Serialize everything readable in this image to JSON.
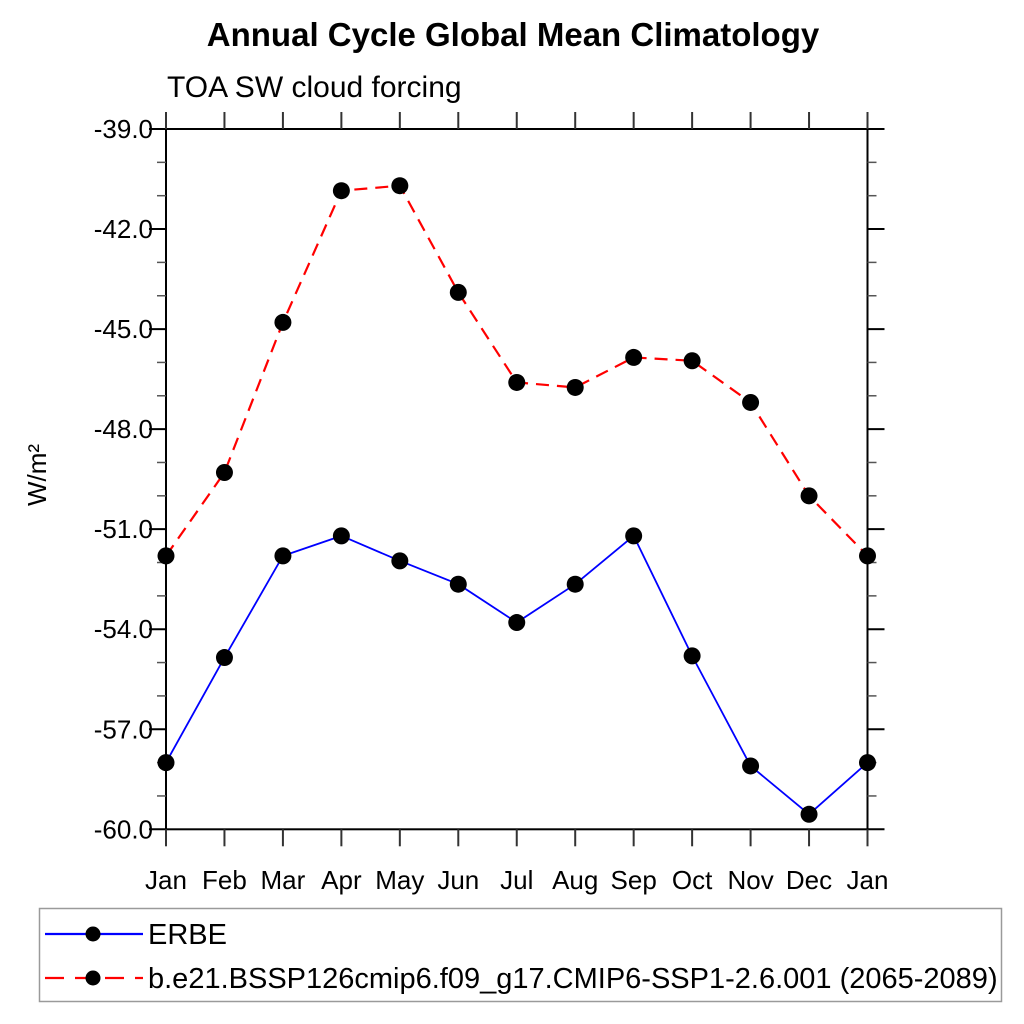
{
  "chart_data": {
    "type": "line",
    "title": "Annual Cycle Global Mean Climatology",
    "subtitle": "TOA SW cloud forcing",
    "ylabel": "W/m²",
    "xlabel": "",
    "categories": [
      "Jan",
      "Feb",
      "Mar",
      "Apr",
      "May",
      "Jun",
      "Jul",
      "Aug",
      "Sep",
      "Oct",
      "Nov",
      "Dec",
      "Jan"
    ],
    "ylim": [
      -39.0,
      -60.0
    ],
    "ytick_labels": [
      "-39.0",
      "-42.0",
      "-45.0",
      "-48.0",
      "-51.0",
      "-54.0",
      "-57.0",
      "-60.0"
    ],
    "yticks_major": [
      -39,
      -42,
      -45,
      -48,
      -51,
      -54,
      -57,
      -60
    ],
    "yminor_step": 1.0,
    "grid": false,
    "legend_position": "bottom-left-box",
    "marker": "filled-circle",
    "marker_color": "#000000",
    "axis_color": "#000000",
    "series": [
      {
        "name": "ERBE",
        "color": "#0000ff",
        "line_style": "solid",
        "values": [
          -58.0,
          -54.85,
          -51.8,
          -51.2,
          -51.95,
          -52.65,
          -53.8,
          -52.65,
          -51.2,
          -54.8,
          -58.1,
          -59.55,
          -58.0
        ]
      },
      {
        "name": "b.e21.BSSP126cmip6.f09_g17.CMIP6-SSP1-2.6.001 (2065-2089)",
        "color": "#ff0000",
        "line_style": "dashed",
        "values": [
          -51.8,
          -49.3,
          -44.8,
          -40.85,
          -40.7,
          -43.9,
          -46.6,
          -46.75,
          -45.85,
          -45.95,
          -47.2,
          -50.0,
          -51.8
        ]
      }
    ]
  }
}
